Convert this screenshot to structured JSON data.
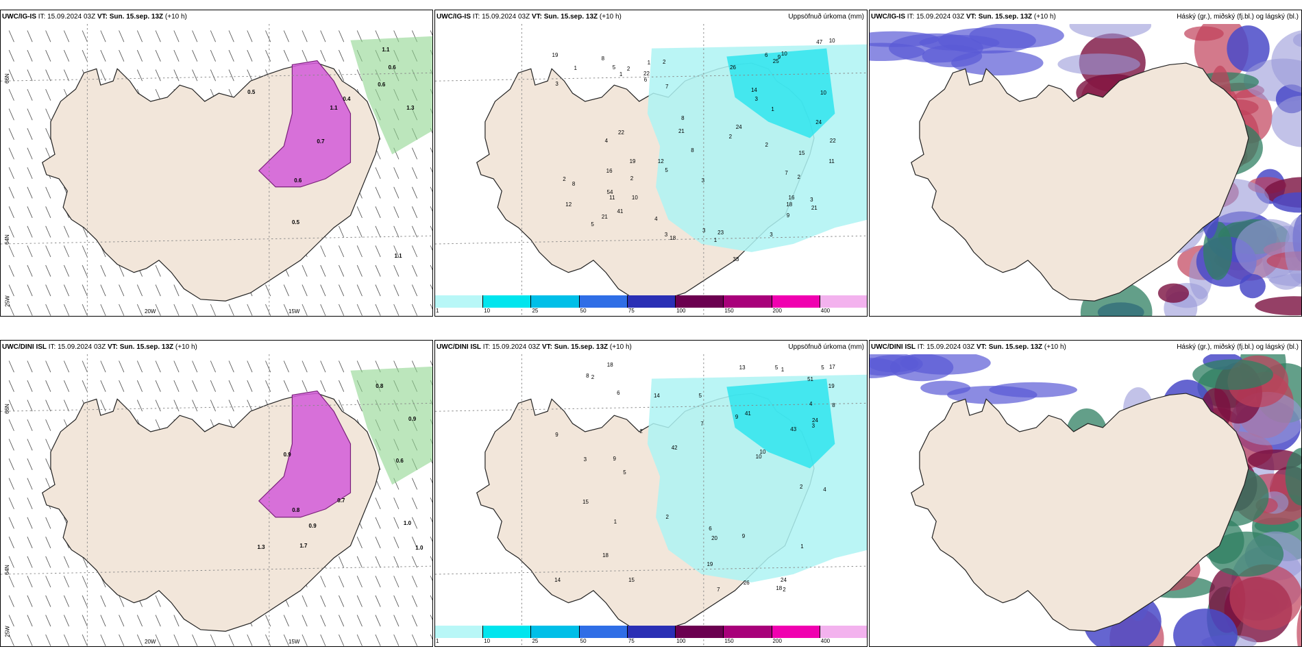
{
  "panels": [
    {
      "model": "UWC/IG-IS",
      "it": "15.09.2024 03Z",
      "vt": "Sun. 15.sep. 13Z",
      "lead": "(+10 h)",
      "right_title": "",
      "type": "wind"
    },
    {
      "model": "UWC/IG-IS",
      "it": "15.09.2024 03Z",
      "vt": "Sun. 15.sep. 13Z",
      "lead": "(+10 h)",
      "right_title": "Uppsöfnuð úrkoma (mm)",
      "type": "precip"
    },
    {
      "model": "UWC/IG-IS",
      "it": "15.09.2024 03Z",
      "vt": "Sun. 15.sep. 13Z",
      "lead": "(+10 h)",
      "right_title": "Háský (gr.), miðský (fj.bl.) og lágský (bl.)",
      "type": "cloud"
    },
    {
      "model": "UWC/DINI ISL",
      "it": "15.09.2024 03Z",
      "vt": "Sun. 15.sep. 13Z",
      "lead": "(+10 h)",
      "right_title": "",
      "type": "wind"
    },
    {
      "model": "UWC/DINI ISL",
      "it": "15.09.2024 03Z",
      "vt": "Sun. 15.sep. 13Z",
      "lead": "(+10 h)",
      "right_title": "Uppsöfnuð úrkoma (mm)",
      "type": "precip"
    },
    {
      "model": "UWC/DINI ISL",
      "it": "15.09.2024 03Z",
      "vt": "Sun. 15.sep. 13Z",
      "lead": "(+10 h)",
      "right_title": "Háský (gr.), miðský (fj.bl.) og lágský (bl.)",
      "type": "cloud"
    }
  ],
  "labels": {
    "it": "IT:",
    "vt": "VT:"
  },
  "grid_labels": {
    "lat1": "66N",
    "lat2": "64N",
    "lon1": "20W",
    "lon2": "15W",
    "lon3": "25W"
  },
  "colorbar": {
    "ticks": [
      "1",
      "10",
      "25",
      "50",
      "75",
      "100",
      "150",
      "200",
      "400"
    ],
    "colors": [
      "#b8f7f7",
      "#00e5ee",
      "#00bfe8",
      "#2f6ee6",
      "#2a2fb5",
      "#6b0050",
      "#a8007a",
      "#f000b0",
      "#f3b2ee"
    ]
  },
  "precip_values_top": [
    "6",
    "22",
    "16",
    "16",
    "6",
    "15",
    "33",
    "3",
    "21",
    "5",
    "11",
    "21",
    "18",
    "19",
    "23",
    "41",
    "3",
    "10",
    "10",
    "3",
    "3",
    "4",
    "5",
    "5",
    "2",
    "4",
    "8",
    "8",
    "19",
    "7",
    "9",
    "47",
    "1",
    "8",
    "2",
    "2",
    "2",
    "7",
    "24",
    "54",
    "26",
    "22",
    "3",
    "10",
    "12",
    "21",
    "3",
    "2",
    "8",
    "1",
    "2",
    "9",
    "11",
    "3",
    "18",
    "10",
    "12",
    "14",
    "25",
    "24",
    "22",
    "2",
    "1",
    "1",
    "1"
  ],
  "precip_values_bottom": [
    "5",
    "17",
    "9",
    "5",
    "15",
    "24",
    "19",
    "41",
    "14",
    "2",
    "5",
    "9",
    "9",
    "8",
    "18",
    "24",
    "43",
    "5",
    "4",
    "8",
    "6",
    "42",
    "51",
    "2",
    "6",
    "3",
    "18",
    "26",
    "14",
    "10",
    "3",
    "7",
    "7",
    "9",
    "4",
    "19",
    "2",
    "13",
    "15",
    "10",
    "18",
    "20",
    "1",
    "2",
    "1",
    "2",
    "1"
  ],
  "wind_values_top": [
    "1.3",
    "0.5",
    "0.6",
    "0.5",
    "0.6",
    "1.1",
    "1.1",
    "0.7",
    "0.4",
    "0.6",
    "1.1"
  ],
  "wind_values_bottom": [
    "0.9",
    "0.8",
    "1.0",
    "0.9",
    "0.9",
    "1.0",
    "0.6",
    "1.7",
    "1.3",
    "0.7",
    "0.8"
  ]
}
